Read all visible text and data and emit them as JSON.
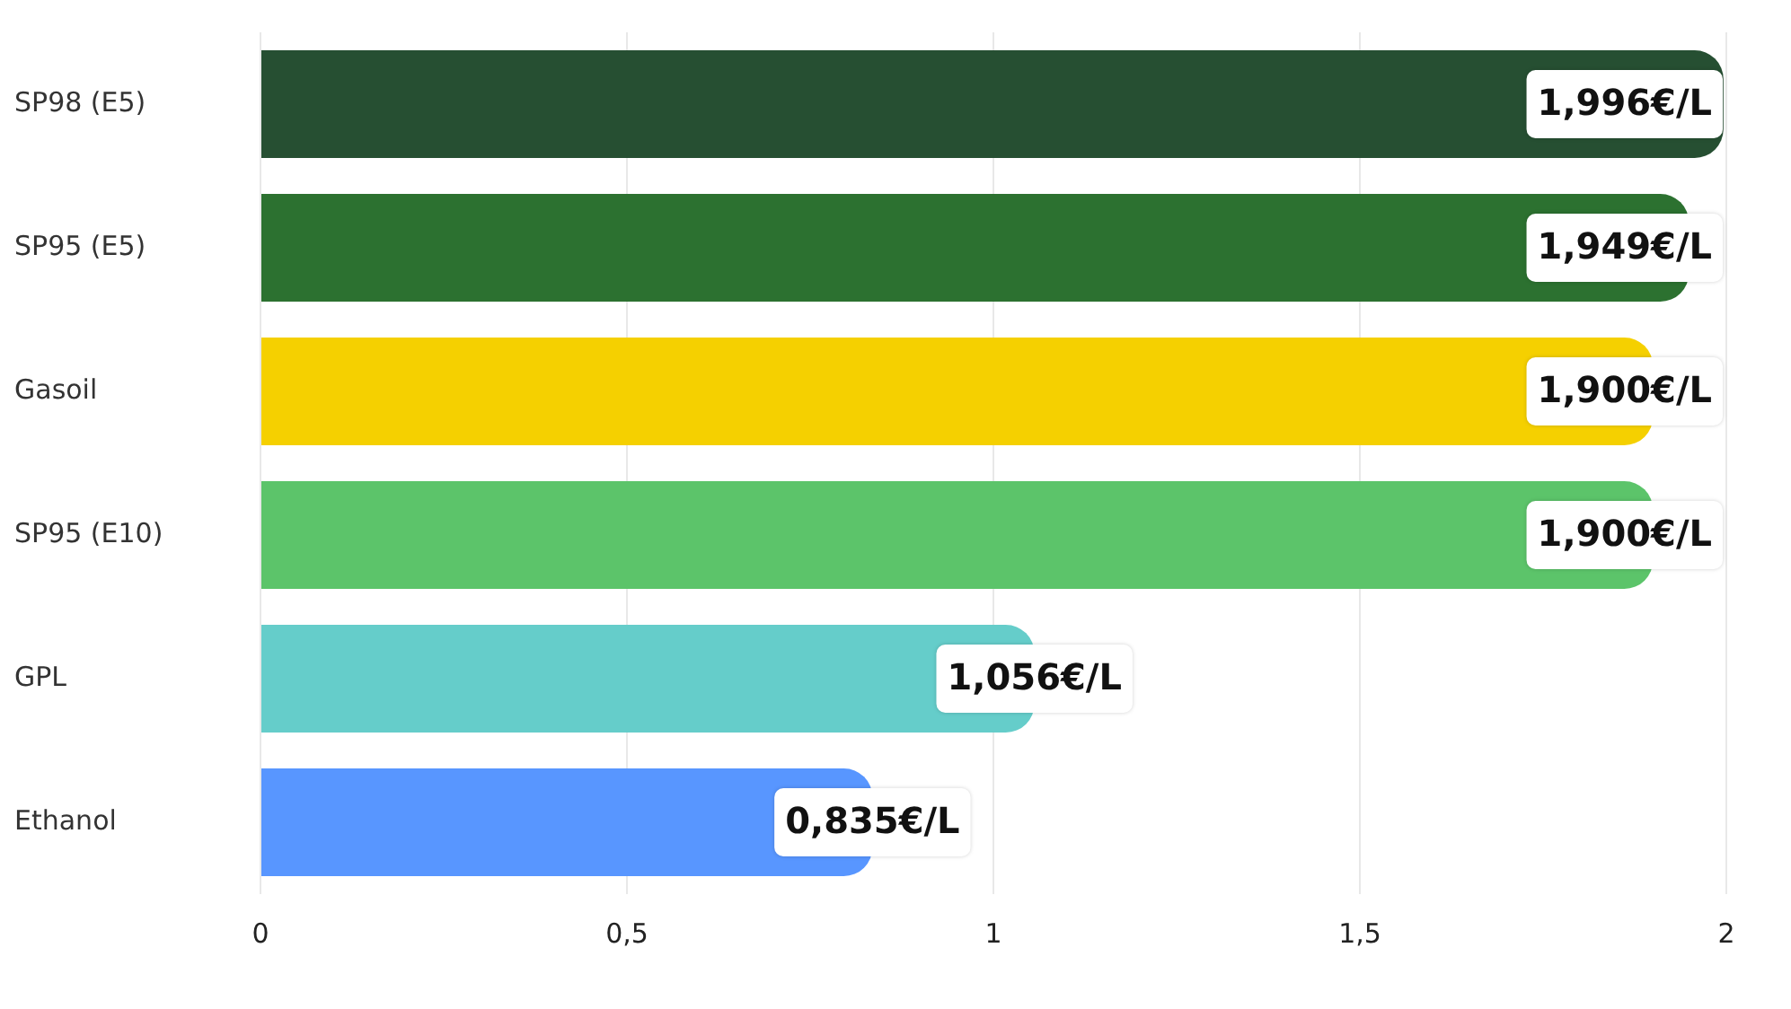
{
  "chart_data": {
    "type": "bar",
    "orientation": "horizontal",
    "categories": [
      "SP98 (E5)",
      "SP95 (E5)",
      "Gasoil",
      "SP95 (E10)",
      "GPL",
      "Ethanol"
    ],
    "values": [
      1.996,
      1.949,
      1.9,
      1.9,
      1.056,
      0.835
    ],
    "colors": [
      "#264f32",
      "#2c7130",
      "#f5d000",
      "#5cc46a",
      "#65cdca",
      "#5896ff"
    ],
    "value_labels": [
      "1,996€/L",
      "1,949€/L",
      "1,900€/L",
      "1,900€/L",
      "1,056€/L",
      "0,835€/L"
    ],
    "xlim": [
      0,
      2
    ],
    "xticks": [
      0,
      {
        "value": 0.5,
        "label": "0,5"
      },
      1,
      {
        "value": 1.5,
        "label": "1,5"
      },
      2
    ],
    "grid": "x",
    "legend": false
  }
}
